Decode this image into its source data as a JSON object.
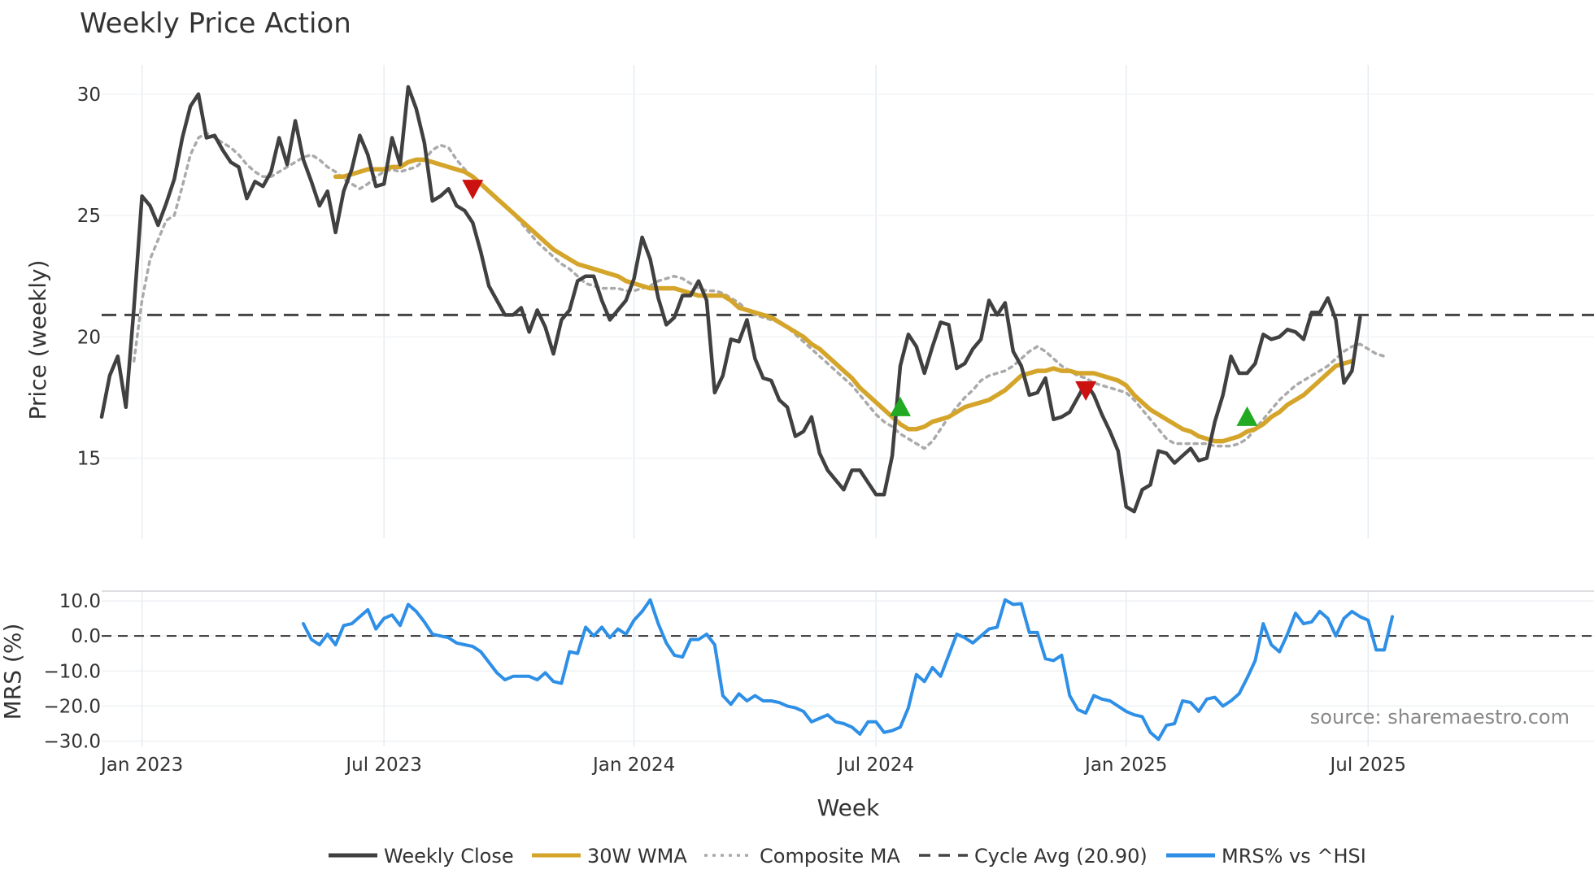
{
  "chart_data": {
    "type": "line",
    "title": "Weekly Price Action",
    "source": "source: sharemaestro.com",
    "xlabel": "Week",
    "x_ticks": [
      "Jan 2023",
      "Jul 2023",
      "Jan 2024",
      "Jul 2024",
      "Jan 2025",
      "Jul 2025"
    ],
    "legend_position": "bottom",
    "price_panel": {
      "ylabel": "Price (weekly)",
      "ylim": [
        11.7,
        31.2
      ],
      "y_ticks": [
        "15",
        "20",
        "25",
        "30"
      ],
      "y_tick_values": [
        15,
        20,
        25,
        30
      ],
      "grid": true,
      "series": [
        {
          "name": "Weekly Close",
          "color": "#404040",
          "style": "solid",
          "x_start": 0,
          "values": [
            16.7,
            18.4,
            19.2,
            17.1,
            21.2,
            25.8,
            25.4,
            24.6,
            25.5,
            26.5,
            28.2,
            29.5,
            30.0,
            28.2,
            28.3,
            27.7,
            27.2,
            27.0,
            25.7,
            26.4,
            26.2,
            26.8,
            28.2,
            27.1,
            28.9,
            27.3,
            26.4,
            25.4,
            26.0,
            24.3,
            26.0,
            26.9,
            28.3,
            27.5,
            26.2,
            26.3,
            28.2,
            27.1,
            30.3,
            29.4,
            28.0,
            25.6,
            25.8,
            26.1,
            25.4,
            25.2,
            24.7,
            23.5,
            22.1,
            21.5,
            20.9,
            20.9,
            21.2,
            20.2,
            21.1,
            20.4,
            19.3,
            20.7,
            21.1,
            22.3,
            22.5,
            22.5,
            21.5,
            20.7,
            21.1,
            21.5,
            22.4,
            24.1,
            23.2,
            21.6,
            20.5,
            20.8,
            21.7,
            21.7,
            22.3,
            21.5,
            17.7,
            18.4,
            19.9,
            19.8,
            20.7,
            19.1,
            18.3,
            18.2,
            17.4,
            17.1,
            15.9,
            16.1,
            16.7,
            15.2,
            14.5,
            14.1,
            13.7,
            14.5,
            14.5,
            14.0,
            13.5,
            13.5,
            15.1,
            18.8,
            20.1,
            19.6,
            18.5,
            19.6,
            20.6,
            20.5,
            18.7,
            18.9,
            19.5,
            19.9,
            21.5,
            20.9,
            21.4,
            19.4,
            18.8,
            17.6,
            17.7,
            18.3,
            16.6,
            16.7,
            16.9,
            17.5,
            18.1,
            17.6,
            16.8,
            16.1,
            15.3,
            13.0,
            12.8,
            13.7,
            13.9,
            15.3,
            15.2,
            14.8,
            15.1,
            15.4,
            14.9,
            15.0,
            16.5,
            17.6,
            19.2,
            18.5,
            18.5,
            18.9,
            20.1,
            19.9,
            20.0,
            20.3,
            20.2,
            19.9,
            21.0,
            21.0,
            21.6,
            20.7,
            18.1,
            18.6,
            20.8
          ]
        },
        {
          "name": "30W WMA",
          "color": "#d4a52a",
          "style": "solid",
          "x_start": 29,
          "values": [
            26.6,
            26.6,
            26.7,
            26.8,
            26.9,
            26.9,
            26.9,
            27.0,
            27.0,
            27.2,
            27.3,
            27.3,
            27.2,
            27.1,
            27.0,
            26.9,
            26.8,
            26.6,
            26.3,
            26.0,
            25.7,
            25.4,
            25.1,
            24.8,
            24.5,
            24.2,
            23.9,
            23.6,
            23.4,
            23.2,
            23.0,
            22.9,
            22.8,
            22.7,
            22.6,
            22.5,
            22.3,
            22.2,
            22.1,
            22.0,
            22.0,
            22.0,
            22.0,
            21.9,
            21.8,
            21.7,
            21.7,
            21.7,
            21.7,
            21.5,
            21.2,
            21.1,
            21.0,
            20.9,
            20.8,
            20.6,
            20.4,
            20.2,
            20.0,
            19.7,
            19.5,
            19.2,
            18.9,
            18.6,
            18.3,
            17.9,
            17.6,
            17.3,
            17.0,
            16.7,
            16.4,
            16.2,
            16.2,
            16.3,
            16.5,
            16.6,
            16.7,
            16.9,
            17.1,
            17.2,
            17.3,
            17.4,
            17.6,
            17.8,
            18.1,
            18.4,
            18.5,
            18.6,
            18.6,
            18.7,
            18.6,
            18.6,
            18.5,
            18.5,
            18.5,
            18.4,
            18.3,
            18.2,
            18.0,
            17.6,
            17.3,
            17.0,
            16.8,
            16.6,
            16.4,
            16.2,
            16.1,
            15.9,
            15.8,
            15.7,
            15.7,
            15.8,
            15.9,
            16.1,
            16.2,
            16.4,
            16.7,
            16.9,
            17.2,
            17.4,
            17.6,
            17.9,
            18.2,
            18.5,
            18.8,
            18.9,
            19.0
          ]
        },
        {
          "name": "Composite MA",
          "color": "#aaaaaa",
          "style": "dotted",
          "x_start": 4,
          "values": [
            19.0,
            21.5,
            23.2,
            24.0,
            24.8,
            25.0,
            26.2,
            27.5,
            28.2,
            28.4,
            28.2,
            28.0,
            27.8,
            27.5,
            27.1,
            26.8,
            26.6,
            26.6,
            26.8,
            27.0,
            27.2,
            27.4,
            27.5,
            27.3,
            27.0,
            26.8,
            26.5,
            26.3,
            26.1,
            26.3,
            26.6,
            26.8,
            26.9,
            26.8,
            26.9,
            27.0,
            27.3,
            27.7,
            27.9,
            27.8,
            27.3,
            26.9,
            26.6,
            26.3,
            26.0,
            25.7,
            25.4,
            25.1,
            24.7,
            24.3,
            23.9,
            23.6,
            23.3,
            23.0,
            22.8,
            22.5,
            22.2,
            22.1,
            22.0,
            22.0,
            22.0,
            21.9,
            21.9,
            22.0,
            22.1,
            22.3,
            22.4,
            22.5,
            22.4,
            22.2,
            22.0,
            21.9,
            21.9,
            21.8,
            21.6,
            21.4,
            21.1,
            20.9,
            20.8,
            20.7,
            20.6,
            20.4,
            20.1,
            19.8,
            19.5,
            19.2,
            18.9,
            18.6,
            18.3,
            18.0,
            17.6,
            17.2,
            16.8,
            16.5,
            16.3,
            16.0,
            15.8,
            15.6,
            15.4,
            15.7,
            16.2,
            16.7,
            17.1,
            17.5,
            17.8,
            18.2,
            18.4,
            18.5,
            18.6,
            18.8,
            19.1,
            19.4,
            19.6,
            19.4,
            19.1,
            18.8,
            18.6,
            18.4,
            18.3,
            18.1,
            18.0,
            17.9,
            17.8,
            17.7,
            17.4,
            17.0,
            16.6,
            16.2,
            15.8,
            15.6,
            15.6,
            15.6,
            15.6,
            15.6,
            15.5,
            15.5,
            15.5,
            15.6,
            15.8,
            16.2,
            16.6,
            17.0,
            17.4,
            17.7,
            18.0,
            18.2,
            18.4,
            18.6,
            18.8,
            19.1,
            19.4,
            19.6,
            19.7,
            19.5,
            19.3,
            19.2
          ]
        }
      ],
      "reference_line": {
        "name": "Cycle Avg (20.90)",
        "value": 20.9,
        "color": "#444444",
        "style": "dashed"
      },
      "signals": [
        {
          "type": "sell",
          "x": 46,
          "value": 26.1,
          "color": "#cc1111"
        },
        {
          "type": "buy",
          "x": 99,
          "value": 17.1,
          "color": "#22aa22"
        },
        {
          "type": "sell",
          "x": 122,
          "value": 17.8,
          "color": "#cc1111"
        },
        {
          "type": "buy",
          "x": 142,
          "value": 16.7,
          "color": "#22aa22"
        }
      ]
    },
    "mrs_panel": {
      "ylabel": "MRS (%)",
      "ylim": [
        -31.5,
        12.8
      ],
      "y_ticks": [
        "10.0",
        "0.0",
        "−10.0",
        "−20.0",
        "−30.0"
      ],
      "y_tick_values": [
        10,
        0,
        -10,
        -20,
        -30
      ],
      "zero_line": true,
      "series": [
        {
          "name": "MRS% vs ^HSI",
          "color": "#2e8fe6",
          "style": "solid",
          "x_start": 25,
          "values": [
            3.5,
            -1.0,
            -2.5,
            0.5,
            -2.5,
            3.0,
            3.5,
            5.5,
            7.5,
            2.0,
            5.0,
            6.0,
            3.0,
            9.0,
            7.0,
            4.0,
            0.5,
            0.0,
            -0.5,
            -2.0,
            -2.5,
            -3.0,
            -4.5,
            -7.5,
            -10.5,
            -12.5,
            -11.5,
            -11.5,
            -11.5,
            -12.5,
            -10.5,
            -13.0,
            -13.5,
            -4.5,
            -5.0,
            2.5,
            0.0,
            2.5,
            -0.5,
            2.0,
            0.5,
            4.5,
            7.0,
            10.3,
            3.5,
            -2.0,
            -5.5,
            -6.0,
            -1.0,
            -1.0,
            0.5,
            -2.5,
            -17.0,
            -19.5,
            -16.5,
            -18.5,
            -17.0,
            -18.5,
            -18.5,
            -19.0,
            -20.0,
            -20.5,
            -21.5,
            -24.5,
            -23.5,
            -22.5,
            -24.5,
            -25.0,
            -26.0,
            -28.0,
            -24.5,
            -24.5,
            -27.5,
            -27.0,
            -26.0,
            -20.5,
            -11.0,
            -13.0,
            -9.0,
            -11.5,
            -5.5,
            0.5,
            -0.5,
            -2.0,
            0.0,
            2.0,
            2.5,
            10.3,
            9.0,
            9.2,
            1.0,
            1.0,
            -6.5,
            -7.0,
            -5.5,
            -17.0,
            -21.0,
            -22.0,
            -17.0,
            -18.0,
            -18.5,
            -20.0,
            -21.5,
            -22.5,
            -23.0,
            -27.5,
            -29.5,
            -25.5,
            -25.0,
            -18.5,
            -19.0,
            -21.5,
            -18.0,
            -17.5,
            -20.0,
            -18.5,
            -16.5,
            -12.0,
            -7.0,
            3.5,
            -2.5,
            -4.5,
            0.5,
            6.5,
            3.5,
            4.0,
            7.0,
            5.0,
            0.0,
            5.0,
            7.0,
            5.5,
            4.5,
            -4.0,
            -4.0,
            5.5
          ]
        }
      ]
    },
    "legend": [
      {
        "label": "Weekly Close",
        "color": "#404040",
        "style": "solid"
      },
      {
        "label": "30W WMA",
        "color": "#d4a52a",
        "style": "solid"
      },
      {
        "label": "Composite MA",
        "color": "#aaaaaa",
        "style": "dotted"
      },
      {
        "label": "Cycle Avg (20.90)",
        "color": "#444444",
        "style": "dashed"
      },
      {
        "label": "MRS% vs ^HSI",
        "color": "#2e8fe6",
        "style": "solid"
      }
    ]
  }
}
